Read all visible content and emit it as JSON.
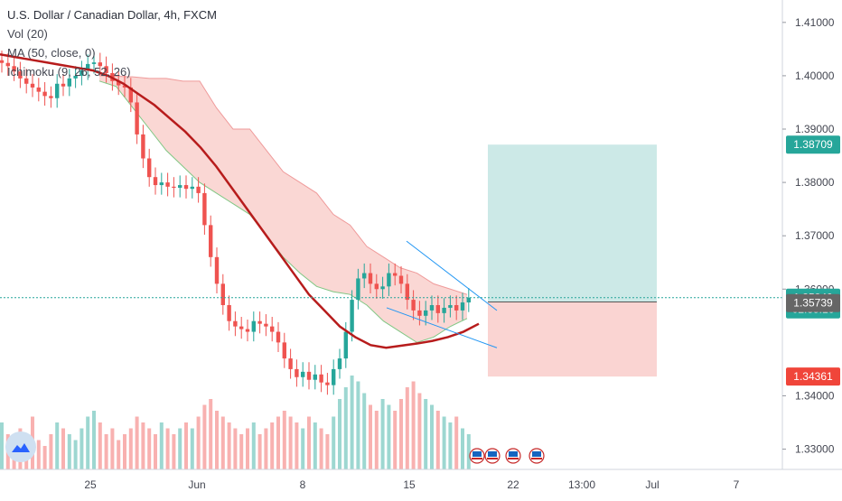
{
  "legend": {
    "title": "U.S. Dollar / Canadian Dollar, 4h, FXCM",
    "vol": "Vol (20)",
    "ma": "MA (50, close, 0)",
    "ichimoku": "Ichimoku (9, 26, 52, 26)"
  },
  "colors": {
    "up": "#26a69a",
    "down": "#ef5350",
    "ma": "#b71c1c",
    "cloud_bear": "#f8c9c6",
    "kijun": "#7b1fa2",
    "chikou": "#43a047",
    "tenkan": "#2196f3",
    "profit": "#bfe3e1",
    "loss": "#f9c9c7",
    "last_price": "#26a69a",
    "countdown": "#26a69a",
    "prev": "#666666",
    "stop": "#f0453a"
  },
  "chart_data": {
    "type": "candlestick",
    "symbol": "USDCAD",
    "timeframe": "4h",
    "ylim": [
      1.3262,
      1.4142
    ],
    "y_ticks": [
      "1.41000",
      "1.40000",
      "1.39000",
      "1.38000",
      "1.37000",
      "1.36000",
      "1.34000",
      "1.33000"
    ],
    "x_ticks": [
      "25",
      "Jun",
      "8",
      "15",
      "22",
      "13:00",
      "Jul",
      "7"
    ],
    "grid": false,
    "price_badges": [
      {
        "name": "target",
        "label": "1.38709",
        "value": 1.38709
      },
      {
        "name": "last",
        "label": "1.35840",
        "value": 1.3584
      },
      {
        "name": "countdown",
        "label": "02:35:16",
        "value": 1.3562
      },
      {
        "name": "prev",
        "label": "1.35739",
        "value": 1.35739
      },
      {
        "name": "stop",
        "label": "1.34361",
        "value": 1.34361
      }
    ],
    "position": {
      "entry": 1.3576,
      "target": 1.38709,
      "stop": 1.34361
    },
    "closes": [
      1.4024,
      1.4018,
      1.4008,
      1.3995,
      1.3985,
      1.3978,
      1.397,
      1.3962,
      1.3958,
      1.3985,
      1.398,
      1.3995,
      1.4,
      1.401,
      1.4022,
      1.4025,
      1.4018,
      1.4005,
      1.399,
      1.3982,
      1.3978,
      1.395,
      1.389,
      1.3845,
      1.381,
      1.3795,
      1.38,
      1.3792,
      1.379,
      1.3795,
      1.3788,
      1.3792,
      1.378,
      1.372,
      1.366,
      1.361,
      1.357,
      1.354,
      1.353,
      1.3525,
      1.352,
      1.354,
      1.3535,
      1.353,
      1.352,
      1.35,
      1.347,
      1.345,
      1.3435,
      1.3445,
      1.343,
      1.344,
      1.3425,
      1.342,
      1.345,
      1.347,
      1.352,
      1.358,
      1.362,
      1.363,
      1.361,
      1.36,
      1.3605,
      1.363,
      1.3625,
      1.361,
      1.358,
      1.356,
      1.355,
      1.356,
      1.357,
      1.3555,
      1.3565,
      1.357,
      1.356,
      1.3575,
      1.3584
    ],
    "volumes": [
      8,
      6,
      5,
      7,
      6,
      9,
      5,
      4,
      6,
      8,
      7,
      6,
      5,
      7,
      9,
      10,
      8,
      6,
      7,
      5,
      6,
      7,
      9,
      8,
      7,
      6,
      8,
      7,
      6,
      7,
      8,
      7,
      9,
      11,
      12,
      10,
      9,
      8,
      7,
      6,
      7,
      8,
      6,
      7,
      8,
      9,
      10,
      9,
      8,
      7,
      9,
      8,
      7,
      6,
      9,
      12,
      14,
      16,
      15,
      13,
      11,
      10,
      12,
      11,
      10,
      12,
      14,
      15,
      13,
      12,
      11,
      10,
      9,
      8,
      9,
      7,
      6
    ],
    "series": [
      {
        "name": "MA (50, close, 0)",
        "values": [
          1.404,
          1.4035,
          1.403,
          1.4025,
          1.402,
          1.4015,
          1.401,
          1.4,
          1.3985,
          1.3965,
          1.3945,
          1.392,
          1.3895,
          1.3865,
          1.383,
          1.379,
          1.375,
          1.371,
          1.367,
          1.363,
          1.359,
          1.356,
          1.353,
          1.351,
          1.3495,
          1.349,
          1.3494,
          1.3498,
          1.3503,
          1.351,
          1.352,
          1.3535
        ]
      }
    ]
  }
}
